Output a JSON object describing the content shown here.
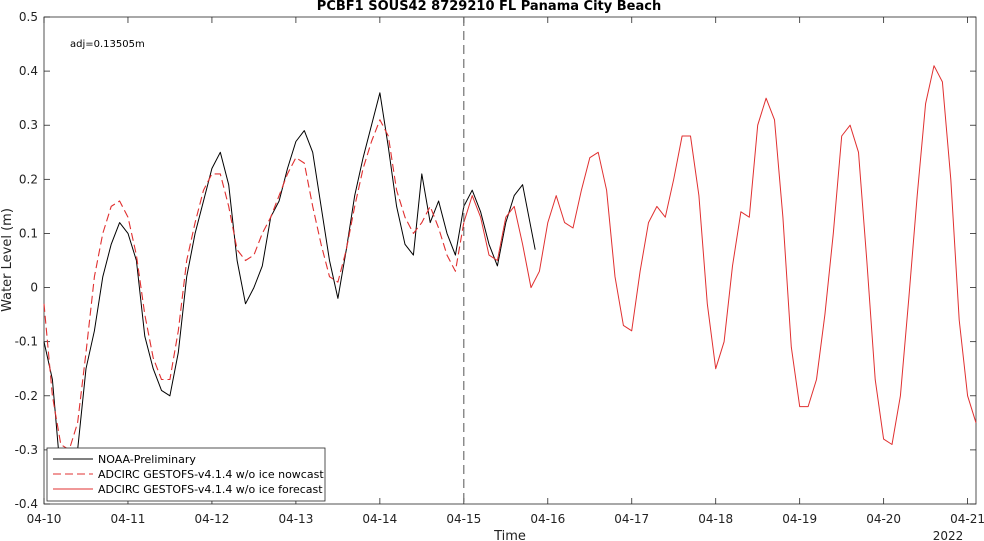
{
  "chart_data": {
    "type": "line",
    "title": "PCBF1 SOUS42 8729210 FL Panama City Beach",
    "xlabel": "Time",
    "ylabel": "Water Level (m)",
    "annotation": "adj=0.13505m",
    "year_label": "2022",
    "xlim": [
      0,
      11.1
    ],
    "ylim": [
      -0.4,
      0.5
    ],
    "x_ticks": [
      0,
      1,
      2,
      3,
      4,
      5,
      6,
      7,
      8,
      9,
      10,
      11
    ],
    "x_tick_labels": [
      "04-10",
      "04-11",
      "04-12",
      "04-13",
      "04-14",
      "04-15",
      "04-16",
      "04-17",
      "04-18",
      "04-19",
      "04-20",
      "04-21"
    ],
    "y_ticks": [
      -0.4,
      -0.3,
      -0.2,
      -0.1,
      0,
      0.1,
      0.2,
      0.3,
      0.4,
      0.5
    ],
    "y_tick_labels": [
      "-0.4",
      "-0.3",
      "-0.2",
      "-0.1",
      "0",
      "0.1",
      "0.2",
      "0.3",
      "0.4",
      "0.5"
    ],
    "vline_x": 5,
    "legend_position": "bottom-left",
    "grid": false,
    "series": [
      {
        "name": "NOAA-Preliminary",
        "color": "#000000",
        "style": "solid",
        "x": [
          0.0,
          0.1,
          0.2,
          0.3,
          0.4,
          0.5,
          0.6,
          0.7,
          0.8,
          0.9,
          1.0,
          1.1,
          1.2,
          1.3,
          1.4,
          1.5,
          1.6,
          1.7,
          1.8,
          1.9,
          2.0,
          2.1,
          2.2,
          2.3,
          2.4,
          2.5,
          2.6,
          2.7,
          2.8,
          2.9,
          3.0,
          3.1,
          3.2,
          3.3,
          3.4,
          3.5,
          3.6,
          3.7,
          3.8,
          3.9,
          4.0,
          4.1,
          4.2,
          4.3,
          4.4,
          4.5,
          4.6,
          4.7,
          4.8,
          4.9,
          5.0,
          5.1,
          5.2,
          5.3,
          5.4,
          5.5,
          5.6,
          5.7,
          5.85
        ],
        "values": [
          -0.1,
          -0.17,
          -0.35,
          -0.37,
          -0.3,
          -0.15,
          -0.08,
          0.02,
          0.08,
          0.12,
          0.1,
          0.05,
          -0.09,
          -0.15,
          -0.19,
          -0.2,
          -0.12,
          0.02,
          0.1,
          0.16,
          0.22,
          0.25,
          0.19,
          0.05,
          -0.03,
          0.0,
          0.04,
          0.13,
          0.16,
          0.22,
          0.27,
          0.29,
          0.25,
          0.15,
          0.05,
          -0.02,
          0.07,
          0.17,
          0.24,
          0.3,
          0.36,
          0.26,
          0.15,
          0.08,
          0.06,
          0.21,
          0.12,
          0.16,
          0.1,
          0.06,
          0.15,
          0.18,
          0.14,
          0.08,
          0.04,
          0.12,
          0.17,
          0.19,
          0.07
        ]
      },
      {
        "name": "ADCIRC GESTOFS-v4.1.4 w/o ice nowcast",
        "color": "#e03030",
        "style": "dashed",
        "x": [
          0.0,
          0.1,
          0.2,
          0.3,
          0.4,
          0.5,
          0.6,
          0.7,
          0.8,
          0.9,
          1.0,
          1.1,
          1.2,
          1.3,
          1.4,
          1.5,
          1.6,
          1.7,
          1.8,
          1.9,
          2.0,
          2.1,
          2.2,
          2.3,
          2.4,
          2.5,
          2.6,
          2.7,
          2.8,
          2.9,
          3.0,
          3.1,
          3.2,
          3.3,
          3.4,
          3.5,
          3.6,
          3.7,
          3.8,
          3.9,
          4.0,
          4.1,
          4.2,
          4.3,
          4.4,
          4.5,
          4.6,
          4.7,
          4.8,
          4.9,
          5.0
        ],
        "values": [
          -0.03,
          -0.2,
          -0.29,
          -0.3,
          -0.25,
          -0.12,
          0.02,
          0.1,
          0.15,
          0.16,
          0.13,
          0.06,
          -0.05,
          -0.13,
          -0.17,
          -0.17,
          -0.08,
          0.05,
          0.12,
          0.18,
          0.21,
          0.21,
          0.15,
          0.07,
          0.05,
          0.06,
          0.1,
          0.13,
          0.17,
          0.21,
          0.24,
          0.23,
          0.15,
          0.08,
          0.02,
          0.01,
          0.07,
          0.15,
          0.22,
          0.27,
          0.31,
          0.28,
          0.18,
          0.13,
          0.1,
          0.12,
          0.15,
          0.11,
          0.06,
          0.03,
          0.12
        ]
      },
      {
        "name": "ADCIRC GESTOFS-v4.1.4 w/o ice forecast",
        "color": "#e03030",
        "style": "solid",
        "x": [
          5.0,
          5.1,
          5.2,
          5.3,
          5.4,
          5.5,
          5.6,
          5.7,
          5.8,
          5.9,
          6.0,
          6.1,
          6.2,
          6.3,
          6.4,
          6.5,
          6.6,
          6.7,
          6.8,
          6.9,
          7.0,
          7.1,
          7.2,
          7.3,
          7.4,
          7.5,
          7.6,
          7.7,
          7.8,
          7.9,
          8.0,
          8.1,
          8.2,
          8.3,
          8.4,
          8.5,
          8.6,
          8.7,
          8.8,
          8.9,
          9.0,
          9.1,
          9.2,
          9.3,
          9.4,
          9.5,
          9.6,
          9.7,
          9.8,
          9.9,
          10.0,
          10.1,
          10.2,
          10.3,
          10.4,
          10.5,
          10.6,
          10.7,
          10.8,
          10.9,
          11.0,
          11.1
        ],
        "values": [
          0.12,
          0.17,
          0.13,
          0.06,
          0.05,
          0.13,
          0.15,
          0.08,
          0.0,
          0.03,
          0.12,
          0.17,
          0.12,
          0.11,
          0.18,
          0.24,
          0.25,
          0.18,
          0.02,
          -0.07,
          -0.08,
          0.03,
          0.12,
          0.15,
          0.13,
          0.2,
          0.28,
          0.28,
          0.17,
          -0.03,
          -0.15,
          -0.1,
          0.04,
          0.14,
          0.13,
          0.3,
          0.35,
          0.31,
          0.13,
          -0.11,
          -0.22,
          -0.22,
          -0.17,
          -0.05,
          0.1,
          0.28,
          0.3,
          0.25,
          0.05,
          -0.17,
          -0.28,
          -0.29,
          -0.2,
          -0.02,
          0.17,
          0.34,
          0.41,
          0.38,
          0.2,
          -0.06,
          -0.2,
          -0.25
        ]
      }
    ]
  }
}
